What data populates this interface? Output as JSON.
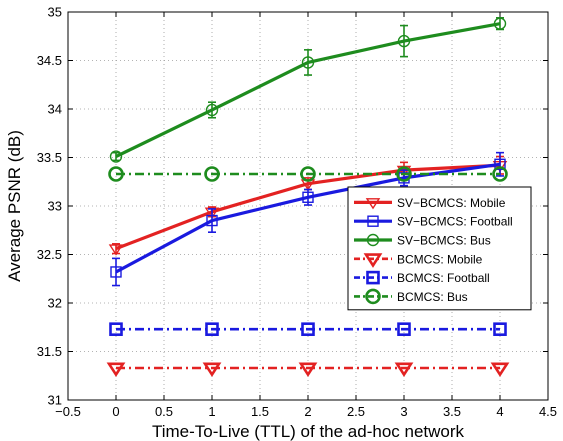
{
  "chart_data": {
    "type": "line",
    "xlabel": "Time-To-Live (TTL) of the ad-hoc network",
    "ylabel": "Average PSNR (dB)",
    "xlim": [
      -0.5,
      4.5
    ],
    "ylim": [
      31,
      35
    ],
    "xticks": [
      -0.5,
      0,
      0.5,
      1,
      1.5,
      2,
      2.5,
      3,
      3.5,
      4,
      4.5
    ],
    "yticks": [
      31,
      31.5,
      32,
      32.5,
      33,
      33.5,
      34,
      34.5,
      35
    ],
    "xtick_labels": [
      "−0.5",
      "0",
      "0.5",
      "1",
      "1.5",
      "2",
      "2.5",
      "3",
      "3.5",
      "4",
      "4.5"
    ],
    "ytick_labels": [
      "31",
      "31.5",
      "32",
      "32.5",
      "33",
      "33.5",
      "34",
      "34.5",
      "35"
    ],
    "grid": true,
    "legend_position": "center-right",
    "x": [
      0,
      1,
      2,
      3,
      4
    ],
    "series": [
      {
        "name": "SV−BCMCS: Mobile",
        "values": [
          32.56,
          32.94,
          33.23,
          33.37,
          33.42
        ],
        "errors": [
          0.05,
          0.05,
          0.06,
          0.08,
          0.09
        ],
        "color": "#e32222",
        "marker": "triangle-down",
        "dash": "solid",
        "marker_size": "small"
      },
      {
        "name": "SV−BCMCS: Football",
        "values": [
          32.32,
          32.85,
          33.09,
          33.29,
          33.43
        ],
        "errors": [
          0.14,
          0.12,
          0.08,
          0.08,
          0.12
        ],
        "color": "#1a1adf",
        "marker": "square",
        "dash": "solid",
        "marker_size": "small"
      },
      {
        "name": "SV−BCMCS: Bus",
        "values": [
          33.51,
          33.99,
          34.48,
          34.7,
          34.88
        ],
        "errors": [
          0.04,
          0.08,
          0.13,
          0.16,
          0.06
        ],
        "color": "#1e8c1e",
        "marker": "circle",
        "dash": "solid",
        "marker_size": "small"
      },
      {
        "name": "BCMCS: Mobile",
        "values": [
          31.33,
          31.33,
          31.33,
          31.33,
          31.33
        ],
        "color": "#e32222",
        "marker": "triangle-down",
        "dash": "dashdot",
        "marker_size": "large"
      },
      {
        "name": "BCMCS: Football",
        "values": [
          31.73,
          31.73,
          31.73,
          31.73,
          31.73
        ],
        "color": "#1a1adf",
        "marker": "square",
        "dash": "dashdot",
        "marker_size": "large"
      },
      {
        "name": "BCMCS: Bus",
        "values": [
          33.33,
          33.33,
          33.33,
          33.33,
          33.33
        ],
        "color": "#1e8c1e",
        "marker": "circle",
        "dash": "dashdot",
        "marker_size": "large"
      }
    ]
  }
}
